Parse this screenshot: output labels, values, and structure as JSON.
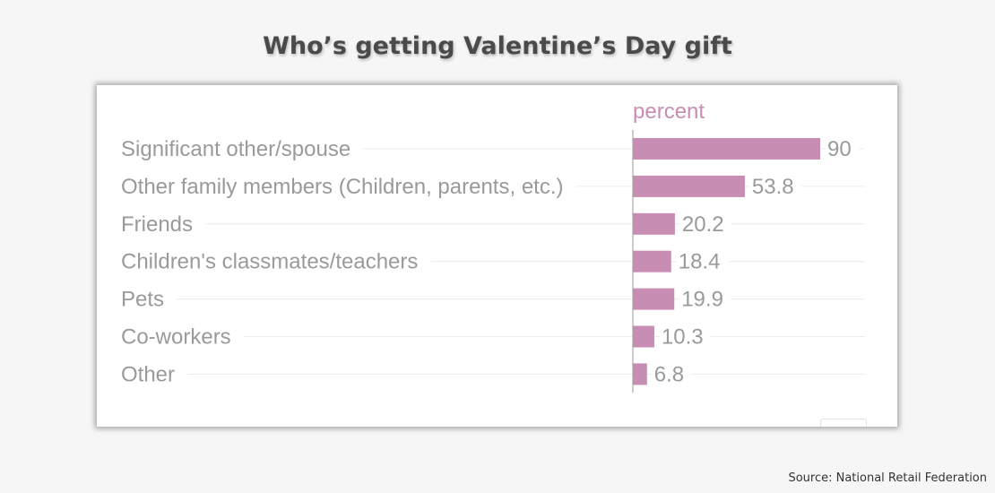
{
  "title": "Who’s getting Valentine’s Day gift",
  "source": "Source: National Retail Federation",
  "chart_data": {
    "type": "bar",
    "orientation": "horizontal",
    "unit_label": "percent",
    "categories": [
      "Significant other/spouse",
      "Other family members (Children, parents, etc.)",
      "Friends",
      "Children's classmates/teachers",
      "Pets",
      "Co-workers",
      "Other"
    ],
    "values": [
      90,
      53.8,
      20.2,
      18.4,
      19.9,
      10.3,
      6.8
    ],
    "value_labels": [
      "90",
      "53.8",
      "20.2",
      "18.4",
      "19.9",
      "10.3",
      "6.8"
    ],
    "xlim": [
      0,
      100
    ],
    "grid": true,
    "bar_color": "#c88db3",
    "text_color": "#9a9a9a"
  }
}
